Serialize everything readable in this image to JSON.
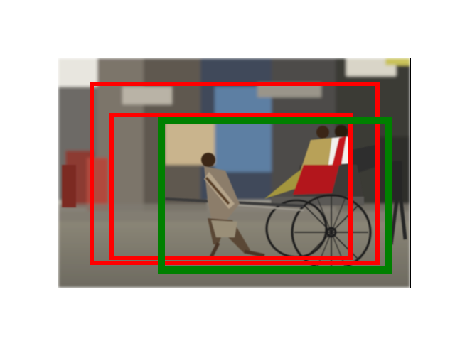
{
  "figure": {
    "description_icon": "street-photo-rickshaw-puller",
    "boxes": [
      {
        "label": "",
        "color": "#ff0000",
        "role": "box-outer-red"
      },
      {
        "label": "",
        "color": "#ff0000",
        "role": "box-inner-red"
      },
      {
        "label": "",
        "color": "#008000",
        "role": "box-green"
      }
    ],
    "colors": {
      "red_box": "#ff0000",
      "green_box": "#008000",
      "frame": "#000000",
      "background": "#ffffff"
    }
  }
}
